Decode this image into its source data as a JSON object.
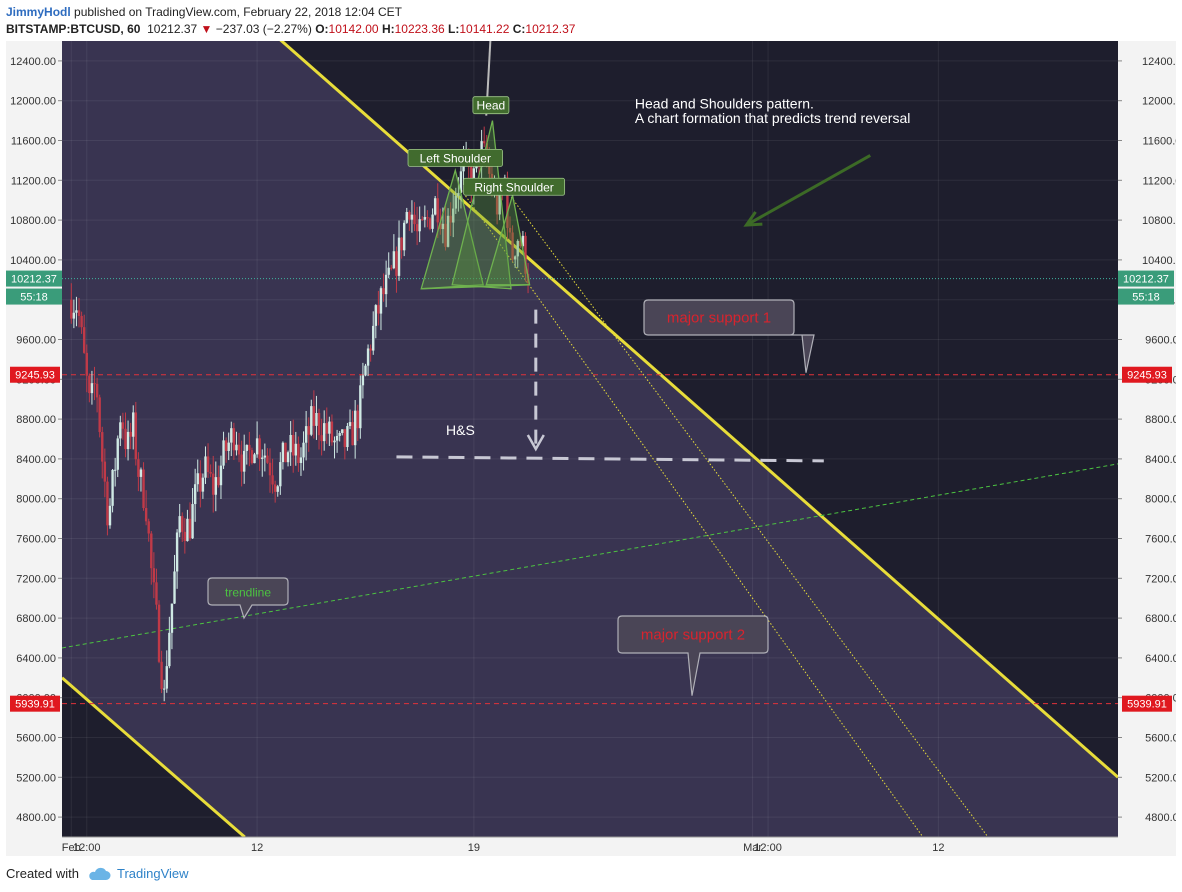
{
  "header": {
    "author": "JimmyHodl",
    "published": " published on TradingView.com, February 22, 2018 12:04 CET",
    "symbol": "BITSTAMP:BTCUSD, 60",
    "last": "10212.37",
    "down_arrow": "▼",
    "change": "−237.03 (−2.27%)",
    "o_key": "O:",
    "o_val": "10142.00",
    "h_key": "H:",
    "h_val": "10223.36",
    "l_key": "L:",
    "l_val": "10141.22",
    "c_key": "C:",
    "c_val": "10212.37"
  },
  "footer": {
    "created_with": "Created with",
    "brand": "TradingView",
    "brand_icon": "cloud-icon"
  },
  "colors": {
    "panel_bg": "#1e1e2d",
    "channel_fill": "#3b3653",
    "channel_line": "#e8dd3a",
    "price_line": "#3fb4a0",
    "support_line": "#e0323a",
    "trend_line": "#4cc341",
    "pattern_label_bg": "#416b2e",
    "candle_up": "#cfe9e4",
    "candle_down": "#c03a48"
  },
  "chart_data": {
    "type": "candlestick",
    "symbol": "BITSTAMP:BTCUSD",
    "interval": "60",
    "ylim": [
      4600,
      12600
    ],
    "y_ticks": [
      "12400.00",
      "12000.00",
      "11600.00",
      "11200.00",
      "10800.00",
      "10400.00",
      "10000.00",
      "9600.00",
      "9200.00",
      "8800.00",
      "8400.00",
      "8000.00",
      "7600.00",
      "7200.00",
      "6800.00",
      "6400.00",
      "6000.00",
      "5600.00",
      "5200.00",
      "4800.00"
    ],
    "x_ticks": [
      {
        "label": "Feb",
        "t": 0
      },
      {
        "label": "12:00",
        "t": 0.5
      },
      {
        "label": "12",
        "t": 6
      },
      {
        "label": "19",
        "t": 13
      },
      {
        "label": "Mar",
        "t": 22
      },
      {
        "label": "12:00",
        "t": 22.5
      },
      {
        "label": "12",
        "t": 28
      }
    ],
    "x_range_days": [
      -0.3,
      33.8
    ],
    "price_path": [
      [
        0,
        10000
      ],
      [
        0.2,
        9950
      ],
      [
        0.45,
        9300
      ],
      [
        0.6,
        8900
      ],
      [
        0.8,
        9200
      ],
      [
        1.0,
        8400
      ],
      [
        1.2,
        7800
      ],
      [
        1.4,
        8300
      ],
      [
        1.6,
        8900
      ],
      [
        1.8,
        8500
      ],
      [
        2.0,
        8700
      ],
      [
        2.2,
        8200
      ],
      [
        2.4,
        8000
      ],
      [
        2.6,
        7200
      ],
      [
        2.85,
        6500
      ],
      [
        3.0,
        6000
      ],
      [
        3.1,
        6500
      ],
      [
        3.3,
        7100
      ],
      [
        3.5,
        7800
      ],
      [
        3.8,
        7700
      ],
      [
        4.0,
        8000
      ],
      [
        4.3,
        8300
      ],
      [
        4.6,
        8100
      ],
      [
        5.0,
        8500
      ],
      [
        5.3,
        8700
      ],
      [
        5.6,
        8300
      ],
      [
        5.9,
        8600
      ],
      [
        6.2,
        8500
      ],
      [
        6.6,
        8200
      ],
      [
        7.0,
        8500
      ],
      [
        7.4,
        8400
      ],
      [
        7.8,
        8800
      ],
      [
        8.2,
        8700
      ],
      [
        8.6,
        8500
      ],
      [
        9.0,
        8600
      ],
      [
        9.3,
        8900
      ],
      [
        9.6,
        9500
      ],
      [
        10.0,
        10000
      ],
      [
        10.3,
        10200
      ],
      [
        10.6,
        10500
      ],
      [
        10.9,
        11000
      ],
      [
        11.2,
        10600
      ],
      [
        11.5,
        10800
      ],
      [
        11.8,
        11000
      ],
      [
        12.1,
        10700
      ],
      [
        12.4,
        11100
      ],
      [
        12.7,
        11300
      ],
      [
        13.0,
        11200
      ],
      [
        13.2,
        11500
      ],
      [
        13.4,
        11400
      ],
      [
        13.6,
        11100
      ],
      [
        13.8,
        10900
      ],
      [
        14.0,
        11200
      ],
      [
        14.2,
        10400
      ],
      [
        14.4,
        10650
      ],
      [
        14.6,
        10500
      ],
      [
        14.8,
        10212
      ]
    ],
    "last_price": 10212.37,
    "last_price_label": "10212.37",
    "countdown_label": "55:18",
    "support_levels": [
      {
        "value": 9245.93,
        "label": "9245.93",
        "annotation": "major support 1"
      },
      {
        "value": 5939.91,
        "label": "5939.91",
        "annotation": "major support 2"
      }
    ],
    "channel": {
      "upper": [
        [
          5.7,
          12900
        ],
        [
          33.8,
          5200
        ]
      ],
      "lower": [
        [
          -0.3,
          6200
        ],
        [
          5.6,
          4600
        ]
      ]
    },
    "trendline": {
      "label": "trendline",
      "points": [
        [
          -0.3,
          6500
        ],
        [
          33.8,
          8350
        ]
      ]
    },
    "yellow_dotted": [
      [
        [
          12.6,
          11100
        ],
        [
          27.5,
          4600
        ]
      ],
      [
        [
          13.8,
          11200
        ],
        [
          29.6,
          4600
        ]
      ]
    ],
    "head_spike": [
      [
        13.4,
        11850
      ],
      [
        13.55,
        12700
      ]
    ],
    "pattern": {
      "title": "Head and Shoulders pattern.",
      "subtitle": "A chart formation that predicts trend reversal",
      "head": "Head",
      "left_shoulder": "Left Shoulder",
      "right_shoulder": "Right Shoulder",
      "target_label": "H&S",
      "neckline": [
        [
          11.3,
          10110
        ],
        [
          14.8,
          10150
        ]
      ],
      "triangle_left": [
        [
          11.3,
          10110
        ],
        [
          12.4,
          11300
        ],
        [
          13.3,
          10150
        ]
      ],
      "triangle_head": [
        [
          12.3,
          10150
        ],
        [
          13.6,
          11800
        ],
        [
          14.2,
          10110
        ]
      ],
      "triangle_right": [
        [
          13.4,
          10150
        ],
        [
          14.25,
          11050
        ],
        [
          14.8,
          10150
        ]
      ],
      "projection": [
        [
          15.0,
          9900
        ],
        [
          15.0,
          8500
        ]
      ],
      "target_line": [
        [
          10.5,
          8420
        ],
        [
          24.3,
          8380
        ]
      ],
      "arrow": [
        [
          25.8,
          11450
        ],
        [
          21.8,
          10750
        ]
      ]
    }
  }
}
